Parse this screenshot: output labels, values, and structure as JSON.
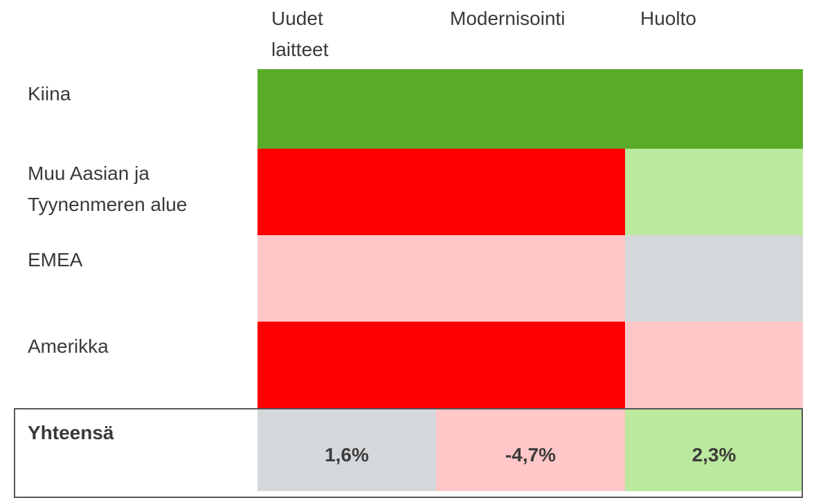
{
  "table": {
    "columns": [
      "Uudet laitteet",
      "Modernisointi",
      "Huolto"
    ],
    "rows": [
      {
        "label": "Kiina",
        "colors": [
          "#5aab28",
          "#5aab28",
          "#5aab28"
        ]
      },
      {
        "label": "Muu Aasian ja Tyynenmeren alue",
        "colors": [
          "#ff0000",
          "#ff0000",
          "#bbe99d"
        ]
      },
      {
        "label": "EMEA",
        "colors": [
          "#ffc7c7",
          "#ffc7c7",
          "#d5d8db"
        ]
      },
      {
        "label": "Amerikka",
        "colors": [
          "#ff0000",
          "#ff0000",
          "#ffc7c7"
        ]
      }
    ],
    "total": {
      "label": "Yhteensä",
      "values": [
        "1,6%",
        "-4,7%",
        "2,3%"
      ],
      "colors": [
        "#d5d8db",
        "#ffc7c7",
        "#bbe99d"
      ]
    }
  }
}
